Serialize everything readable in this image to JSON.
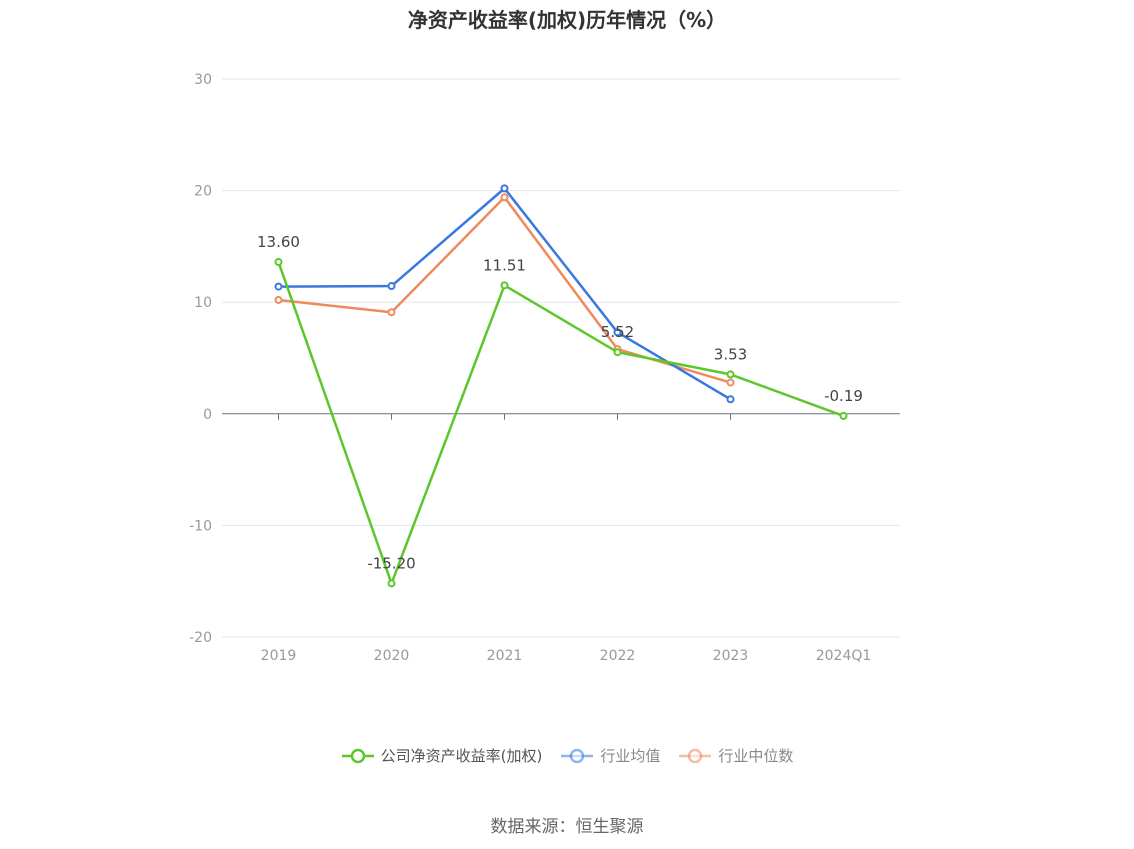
{
  "title": "净资产收益率(加权)历年情况（%）",
  "source": "数据来源：恒生聚源",
  "chart_data": {
    "type": "line",
    "title": "净资产收益率(加权)历年情况（%）",
    "categories": [
      "2019",
      "2020",
      "2021",
      "2022",
      "2023",
      "2024Q1"
    ],
    "ylim": [
      -20,
      30
    ],
    "yticks": [
      -20,
      -10,
      0,
      10,
      20,
      30
    ],
    "grid": true,
    "legend_position": "bottom",
    "series": [
      {
        "name": "公司净资产收益率(加权)",
        "color": "#5cc72a",
        "values": [
          13.6,
          -15.2,
          11.51,
          5.52,
          3.53,
          -0.19
        ],
        "labels": [
          "13.60",
          "-15.20",
          "11.51",
          "5.52",
          "3.53",
          "-0.19"
        ]
      },
      {
        "name": "行业均值",
        "color": "#3a78e0",
        "values": [
          11.4,
          11.45,
          20.2,
          7.3,
          1.3,
          null
        ]
      },
      {
        "name": "行业中位数",
        "color": "#f08a5d",
        "values": [
          10.2,
          9.1,
          19.4,
          5.8,
          2.8,
          null
        ]
      }
    ]
  }
}
